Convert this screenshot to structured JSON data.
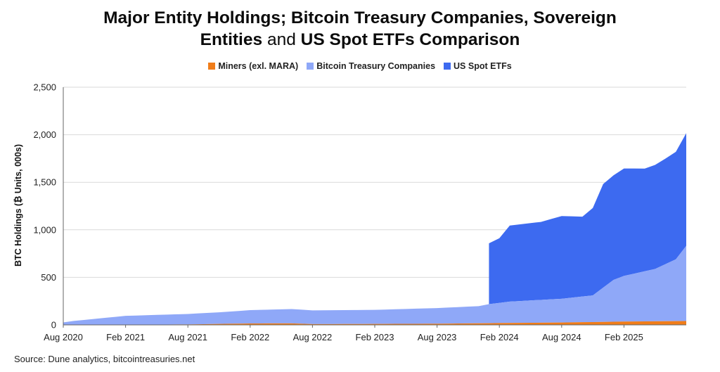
{
  "title": {
    "line1": "Major Entity Holdings; Bitcoin Treasury Companies, Sovereign",
    "line2_a": "Entities",
    "line2_b": "and",
    "line2_c": "US Spot ETFs Comparison"
  },
  "source": "Source: Dune analytics, bitcointreasuries.net",
  "colors": {
    "miners": "#f07d1a",
    "treasury": "#8fa8f8",
    "etf": "#3d6af0",
    "grid": "#d9d9d9",
    "axis": "#666666"
  },
  "chart_data": {
    "type": "area",
    "stacked": true,
    "ylabel": "BTC Holdings (₿ Units, 000s)",
    "xlabel": "",
    "ylim": [
      0,
      2500
    ],
    "yticks": [
      0,
      500,
      1000,
      1500,
      2000,
      2500
    ],
    "ytick_labels": [
      "0",
      "500",
      "1,000",
      "1,500",
      "2,000",
      "2,500"
    ],
    "xticks": [
      "Aug 2020",
      "Feb 2021",
      "Aug 2021",
      "Feb 2022",
      "Aug 2022",
      "Feb 2023",
      "Aug 2023",
      "Feb 2024",
      "Aug 2024",
      "Feb 2025"
    ],
    "x_range": [
      "2020-08",
      "2025-08"
    ],
    "grid": true,
    "legend_position": "top-center",
    "series": [
      {
        "name": "Miners (exl. MARA)",
        "points": [
          [
            "2020-08",
            1
          ],
          [
            "2021-02",
            2
          ],
          [
            "2021-08",
            5
          ],
          [
            "2022-02",
            15
          ],
          [
            "2022-06",
            16
          ],
          [
            "2022-08",
            8
          ],
          [
            "2023-02",
            10
          ],
          [
            "2023-08",
            12
          ],
          [
            "2024-01",
            18
          ],
          [
            "2024-08",
            25
          ],
          [
            "2025-02",
            35
          ],
          [
            "2025-07",
            40
          ],
          [
            "2025-08",
            41
          ]
        ]
      },
      {
        "name": "Bitcoin Treasury Companies",
        "points": [
          [
            "2020-08",
            25
          ],
          [
            "2020-09",
            40
          ],
          [
            "2020-12",
            72
          ],
          [
            "2021-02",
            93
          ],
          [
            "2021-08",
            110
          ],
          [
            "2021-11",
            122
          ],
          [
            "2022-02",
            140
          ],
          [
            "2022-06",
            150
          ],
          [
            "2022-08",
            145
          ],
          [
            "2023-02",
            148
          ],
          [
            "2023-08",
            165
          ],
          [
            "2023-12",
            180
          ],
          [
            "2024-01",
            200
          ],
          [
            "2024-03",
            225
          ],
          [
            "2024-08",
            250
          ],
          [
            "2024-11",
            280
          ],
          [
            "2025-01",
            440
          ],
          [
            "2025-02",
            480
          ],
          [
            "2025-05",
            550
          ],
          [
            "2025-07",
            650
          ],
          [
            "2025-08",
            790
          ]
        ]
      },
      {
        "name": "US Spot ETFs",
        "points": [
          [
            "2024-01",
            640
          ],
          [
            "2024-02",
            680
          ],
          [
            "2024-03",
            800
          ],
          [
            "2024-06",
            820
          ],
          [
            "2024-08",
            870
          ],
          [
            "2024-10",
            840
          ],
          [
            "2024-11",
            920
          ],
          [
            "2024-12",
            1090
          ],
          [
            "2025-01",
            1100
          ],
          [
            "2025-02",
            1130
          ],
          [
            "2025-04",
            1080
          ],
          [
            "2025-06",
            1110
          ],
          [
            "2025-07",
            1130
          ],
          [
            "2025-08",
            1185
          ]
        ]
      }
    ]
  }
}
